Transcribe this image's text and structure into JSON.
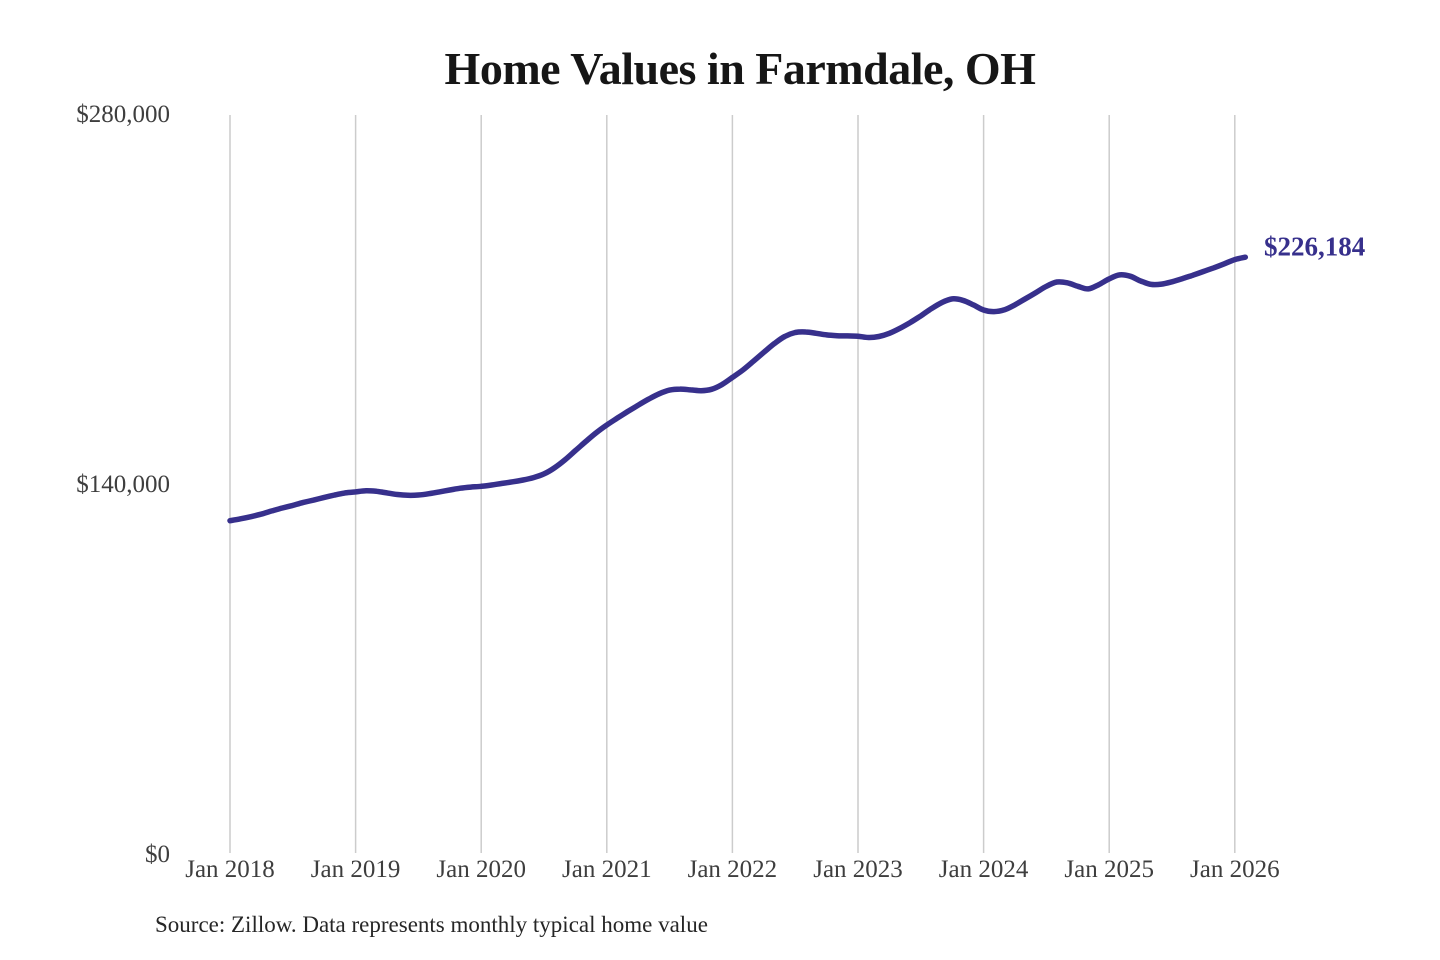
{
  "page": {
    "background": "#ffffff"
  },
  "chart_data": {
    "type": "line",
    "title": "Home Values in Farmdale, OH",
    "source_note": "Source: Zillow. Data represents monthly typical home value",
    "x_start": "2018-01",
    "x_freq": "monthly",
    "x_tick_labels": [
      "Jan 2018",
      "Jan 2019",
      "Jan 2020",
      "Jan 2021",
      "Jan 2022",
      "Jan 2023",
      "Jan 2024",
      "Jan 2025",
      "Jan 2026"
    ],
    "y_tick_labels": [
      "$0",
      "$140,000",
      "$280,000"
    ],
    "y_ticks": [
      0,
      140000,
      280000
    ],
    "ylim": [
      0,
      280000
    ],
    "grid": "vertical-only",
    "legend": "none",
    "end_label": "$226,184",
    "final_value": 226184,
    "line_color": "#37308c",
    "grid_color": "#cccccc",
    "series": [
      {
        "name": "Typical home value",
        "values": [
          126500,
          127200,
          128000,
          129000,
          130200,
          131300,
          132300,
          133400,
          134300,
          135300,
          136200,
          137000,
          137400,
          137800,
          137600,
          137000,
          136400,
          136100,
          136200,
          136700,
          137400,
          138100,
          138800,
          139200,
          139500,
          140000,
          140600,
          141200,
          141900,
          142800,
          144200,
          146500,
          149500,
          153000,
          156500,
          159800,
          162700,
          165300,
          167800,
          170200,
          172500,
          174500,
          175900,
          176300,
          176000,
          175700,
          176200,
          178000,
          180700,
          183500,
          186800,
          190200,
          193500,
          196200,
          197700,
          197900,
          197400,
          196800,
          196500,
          196400,
          196300,
          195800,
          196200,
          197400,
          199300,
          201500,
          204000,
          206700,
          209000,
          210400,
          209900,
          208200,
          206200,
          205600,
          206300,
          208200,
          210500,
          212800,
          215200,
          216800,
          216500,
          215200,
          214200,
          215800,
          218000,
          219500,
          219000,
          217200,
          215900,
          216000,
          216900,
          218100,
          219400,
          220800,
          222200,
          223700,
          225300,
          226184
        ]
      }
    ]
  }
}
